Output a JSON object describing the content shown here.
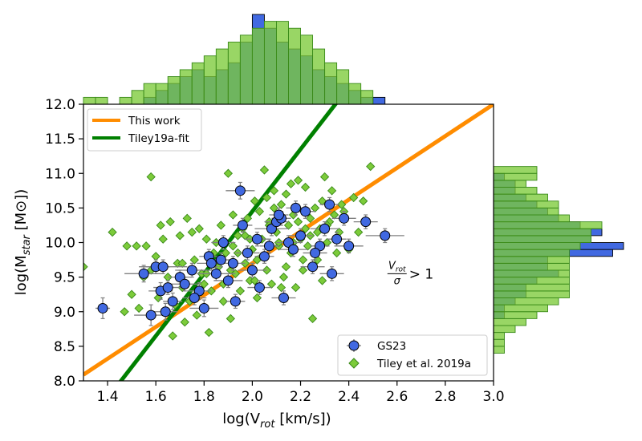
{
  "chart_data": {
    "type": "scatter",
    "xlabel_base": "log(V",
    "xlabel_sub": "rot",
    "xlabel_tail": " [km/s])",
    "ylabel_base": "log(M",
    "ylabel_sub": "star",
    "ylabel_tail": " [M⊙])",
    "xlim": [
      1.3,
      3.0
    ],
    "ylim": [
      8.0,
      12.0
    ],
    "xticks": [
      "1.4",
      "1.6",
      "1.8",
      "2.0",
      "2.2",
      "2.4",
      "2.6",
      "2.8",
      "3.0"
    ],
    "yticks": [
      "8.0",
      "8.5",
      "9.0",
      "9.5",
      "10.0",
      "10.5",
      "11.0",
      "11.5",
      "12.0"
    ],
    "annotation": {
      "num": "V",
      "num_sub": "rot",
      "den": "σ",
      "rel": "> 1",
      "x": 2.6,
      "y": 9.55
    },
    "colors": {
      "gs23": "#4169e1",
      "tiley": "#7ccb3a",
      "tiley_edge": "#3a8a1a",
      "this_work": "#ff8c00",
      "tiley_fit": "#008000",
      "errorbar": "#808080"
    },
    "lines": {
      "this_work": {
        "label": "This work",
        "slope": 2.3,
        "intercept": 5.1
      },
      "tiley_fit": {
        "label": "Tiley19a-fit",
        "slope": 4.5,
        "intercept": 1.45
      }
    },
    "legend_top": [
      "This work",
      "Tiley19a-fit"
    ],
    "legend_bottom": [
      "GS23",
      "Tiley et al. 2019a"
    ],
    "gs23": {
      "label": "GS23",
      "x": [
        1.38,
        1.55,
        1.58,
        1.6,
        1.62,
        1.63,
        1.64,
        1.65,
        1.67,
        1.7,
        1.72,
        1.75,
        1.78,
        1.8,
        1.82,
        1.85,
        1.87,
        1.9,
        1.92,
        1.95,
        1.96,
        1.98,
        2.0,
        2.02,
        2.05,
        2.08,
        2.1,
        2.12,
        2.15,
        2.17,
        2.2,
        2.22,
        2.25,
        2.28,
        2.3,
        2.33,
        2.35,
        2.38,
        2.4,
        2.47,
        2.55,
        1.88,
        1.93,
        2.03,
        2.07,
        2.13,
        2.18,
        2.26,
        2.32,
        1.76,
        1.83,
        2.11
      ],
      "y": [
        9.05,
        9.55,
        8.95,
        9.65,
        9.3,
        9.65,
        9.0,
        9.35,
        9.15,
        9.5,
        9.4,
        9.6,
        9.3,
        9.05,
        9.8,
        9.55,
        9.75,
        9.45,
        9.7,
        10.75,
        10.25,
        9.85,
        9.6,
        10.05,
        9.8,
        10.2,
        10.3,
        10.35,
        10.0,
        9.9,
        10.1,
        10.45,
        9.65,
        9.95,
        10.2,
        9.55,
        10.05,
        10.35,
        9.95,
        10.3,
        10.1,
        10.0,
        9.15,
        9.35,
        9.95,
        9.2,
        10.5,
        9.85,
        10.55,
        9.2,
        9.7,
        10.4
      ],
      "xerr": [
        0.03,
        0.08,
        0.07,
        0.06,
        0.05,
        0.1,
        0.05,
        0.06,
        0.04,
        0.05,
        0.06,
        0.07,
        0.05,
        0.06,
        0.04,
        0.08,
        0.05,
        0.06,
        0.05,
        0.06,
        0.04,
        0.05,
        0.06,
        0.05,
        0.04,
        0.07,
        0.05,
        0.04,
        0.05,
        0.06,
        0.05,
        0.04,
        0.05,
        0.04,
        0.06,
        0.05,
        0.04,
        0.05,
        0.06,
        0.05,
        0.08,
        0.05,
        0.04,
        0.05,
        0.04,
        0.05,
        0.04,
        0.05,
        0.04,
        0.05,
        0.06,
        0.04
      ],
      "yerr": [
        0.15,
        0.12,
        0.15,
        0.1,
        0.12,
        0.1,
        0.12,
        0.1,
        0.12,
        0.1,
        0.1,
        0.1,
        0.12,
        0.12,
        0.1,
        0.1,
        0.1,
        0.1,
        0.1,
        0.12,
        0.1,
        0.1,
        0.1,
        0.1,
        0.1,
        0.1,
        0.1,
        0.1,
        0.1,
        0.1,
        0.1,
        0.1,
        0.1,
        0.1,
        0.1,
        0.1,
        0.1,
        0.1,
        0.1,
        0.1,
        0.1,
        0.1,
        0.1,
        0.1,
        0.1,
        0.1,
        0.1,
        0.1,
        0.1,
        0.1,
        0.1,
        0.1
      ]
    },
    "tiley": {
      "label": "Tiley et al. 2019a",
      "x": [
        1.3,
        1.42,
        1.47,
        1.48,
        1.5,
        1.52,
        1.53,
        1.55,
        1.56,
        1.58,
        1.58,
        1.6,
        1.62,
        1.63,
        1.65,
        1.66,
        1.67,
        1.68,
        1.7,
        1.71,
        1.72,
        1.73,
        1.75,
        1.76,
        1.77,
        1.78,
        1.8,
        1.81,
        1.82,
        1.83,
        1.85,
        1.86,
        1.87,
        1.88,
        1.89,
        1.9,
        1.91,
        1.92,
        1.93,
        1.94,
        1.95,
        1.96,
        1.97,
        1.98,
        1.99,
        2.0,
        2.01,
        2.02,
        2.03,
        2.04,
        2.05,
        2.06,
        2.07,
        2.08,
        2.09,
        2.1,
        2.11,
        2.12,
        2.13,
        2.14,
        2.15,
        2.16,
        2.17,
        2.18,
        2.19,
        2.2,
        2.21,
        2.22,
        2.23,
        2.24,
        2.25,
        2.26,
        2.27,
        2.28,
        2.29,
        2.3,
        2.31,
        2.33,
        2.35,
        2.37,
        2.4,
        2.42,
        2.44,
        2.46,
        2.49,
        1.74,
        1.79,
        1.84,
        1.92,
        1.97,
        2.02,
        2.07,
        2.12,
        2.17,
        2.22,
        2.27,
        2.32,
        2.38,
        1.69,
        1.88,
        1.94,
        2.04,
        2.14,
        2.24,
        2.34,
        1.81,
        1.99,
        2.09,
        2.19,
        2.29,
        1.61,
        1.71,
        1.91,
        2.01,
        2.11,
        2.21,
        2.31,
        2.06,
        2.16,
        2.36
      ],
      "y": [
        9.65,
        10.15,
        9.0,
        9.95,
        9.25,
        9.95,
        9.05,
        9.5,
        9.95,
        9.6,
        10.95,
        9.8,
        10.25,
        10.05,
        9.5,
        10.3,
        8.65,
        9.1,
        10.1,
        9.35,
        8.85,
        10.35,
        10.15,
        9.75,
        8.95,
        10.2,
        9.4,
        10.05,
        8.7,
        9.3,
        10.0,
        9.65,
        10.25,
        9.15,
        9.85,
        11.0,
        8.9,
        10.4,
        9.55,
        10.1,
        9.3,
        10.2,
        9.7,
        10.35,
        9.45,
        9.9,
        10.6,
        9.2,
        10.45,
        9.8,
        11.05,
        9.6,
        10.3,
        9.4,
        10.75,
        10.15,
        9.95,
        10.55,
        9.5,
        10.7,
        10.25,
        9.85,
        10.4,
        9.35,
        10.9,
        10.05,
        9.6,
        10.8,
        9.95,
        10.35,
        8.9,
        10.5,
        9.75,
        10.2,
        9.45,
        10.95,
        10.0,
        10.75,
        9.85,
        10.55,
        9.9,
        10.65,
        10.15,
        10.6,
        11.1,
        9.15,
        9.55,
        9.85,
        9.95,
        10.1,
        9.75,
        10.25,
        9.35,
        10.0,
        10.2,
        10.15,
        10.3,
        10.45,
        9.7,
        9.4,
        9.85,
        10.05,
        9.65,
        10.1,
        10.4,
        9.55,
        10.05,
        10.5,
        10.3,
        10.6,
        9.2,
        9.7,
        9.6,
        9.45,
        10.0,
        9.75,
        10.25,
        10.65,
        10.85,
        10.15
      ]
    },
    "hist_x": {
      "bin_edges": [
        1.3,
        1.35,
        1.4,
        1.45,
        1.5,
        1.55,
        1.6,
        1.65,
        1.7,
        1.75,
        1.8,
        1.85,
        1.9,
        1.95,
        2.0,
        2.05,
        2.1,
        2.15,
        2.2,
        2.25,
        2.3,
        2.35,
        2.4,
        2.45,
        2.5,
        2.55
      ],
      "gs23": [
        0,
        0,
        0,
        0,
        0,
        1,
        2,
        3,
        4,
        5,
        4,
        5,
        6,
        9,
        13,
        11,
        9,
        8,
        7,
        5,
        4,
        3,
        2,
        1,
        1
      ],
      "tiley": [
        1,
        1,
        0,
        1,
        2,
        3,
        3,
        4,
        5,
        6,
        7,
        8,
        9,
        10,
        11,
        12,
        12,
        11,
        10,
        8,
        6,
        5,
        3,
        2,
        0
      ]
    },
    "hist_y": {
      "bin_edges": [
        8.4,
        8.5,
        8.6,
        8.7,
        8.8,
        8.9,
        9.0,
        9.1,
        9.2,
        9.3,
        9.4,
        9.5,
        9.6,
        9.7,
        9.8,
        9.9,
        10.0,
        10.1,
        10.2,
        10.3,
        10.4,
        10.5,
        10.6,
        10.7,
        10.8,
        10.9,
        11.0,
        11.1
      ],
      "gs23": [
        0,
        0,
        0,
        0,
        0,
        1,
        1,
        2,
        3,
        3,
        4,
        6,
        5,
        5,
        11,
        12,
        9,
        10,
        8,
        6,
        5,
        4,
        3,
        2,
        2,
        1,
        0
      ],
      "tiley": [
        1,
        1,
        1,
        2,
        3,
        4,
        5,
        6,
        7,
        7,
        7,
        7,
        7,
        7,
        7,
        8,
        9,
        9,
        10,
        7,
        6,
        6,
        5,
        4,
        3,
        4,
        4
      ]
    }
  }
}
